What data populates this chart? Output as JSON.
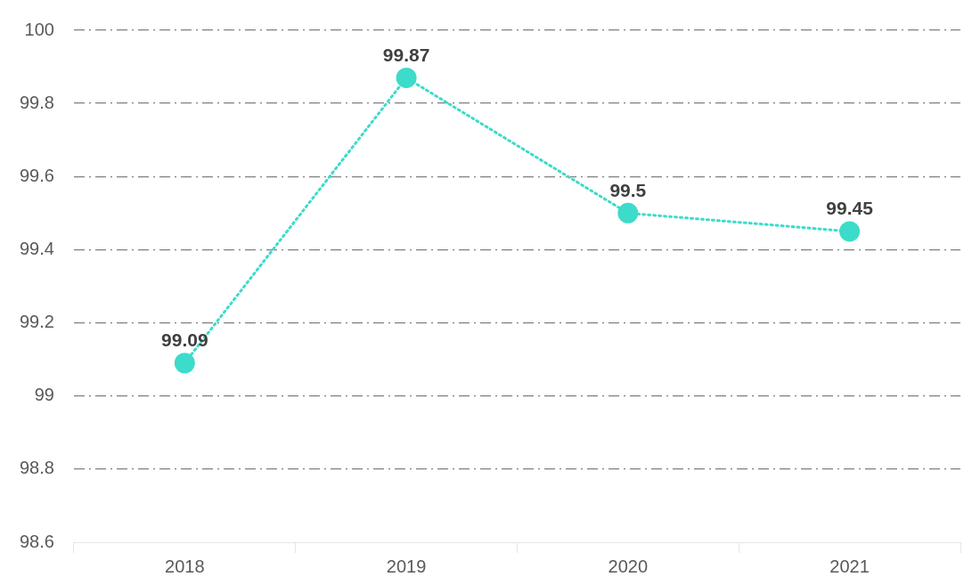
{
  "chart_data": {
    "type": "line",
    "categories": [
      "2018",
      "2019",
      "2020",
      "2021"
    ],
    "series": [
      {
        "color": "#3ddbca",
        "values": [
          99.09,
          99.87,
          99.5,
          99.45
        ]
      }
    ],
    "ylim": [
      98.6,
      100
    ],
    "yticks": [
      98.6,
      98.8,
      99,
      99.2,
      99.4,
      99.6,
      99.8,
      100
    ],
    "grid": "y",
    "marker": "circle",
    "line_style": "dotted",
    "data_labels": true
  }
}
